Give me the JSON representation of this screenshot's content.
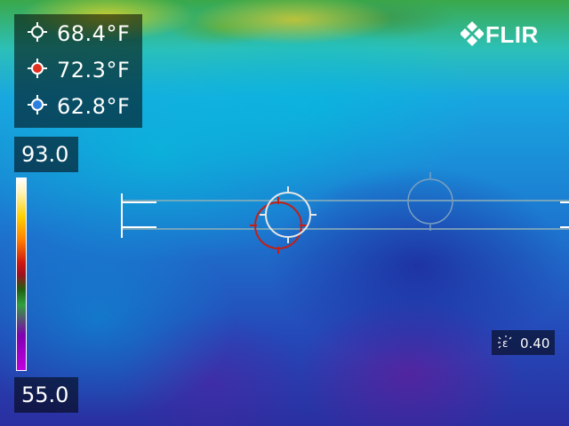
{
  "readings": [
    {
      "kind": "center-spot",
      "value": "68.4°F",
      "marker_color": "#ffffff"
    },
    {
      "kind": "hot-spot",
      "value": "72.3°F",
      "marker_color": "#e03020"
    },
    {
      "kind": "cold-spot",
      "value": "62.8°F",
      "marker_color": "#2c7fe0"
    }
  ],
  "brand": {
    "logo_text": "FLIR"
  },
  "scale": {
    "max": "93.0",
    "min": "55.0"
  },
  "emissivity": {
    "icon": "emissivity-icon",
    "value": "0.40"
  },
  "colors": {
    "hot": "#e03020",
    "cold": "#2c7fe0",
    "box_line": "#8fb0b8"
  }
}
